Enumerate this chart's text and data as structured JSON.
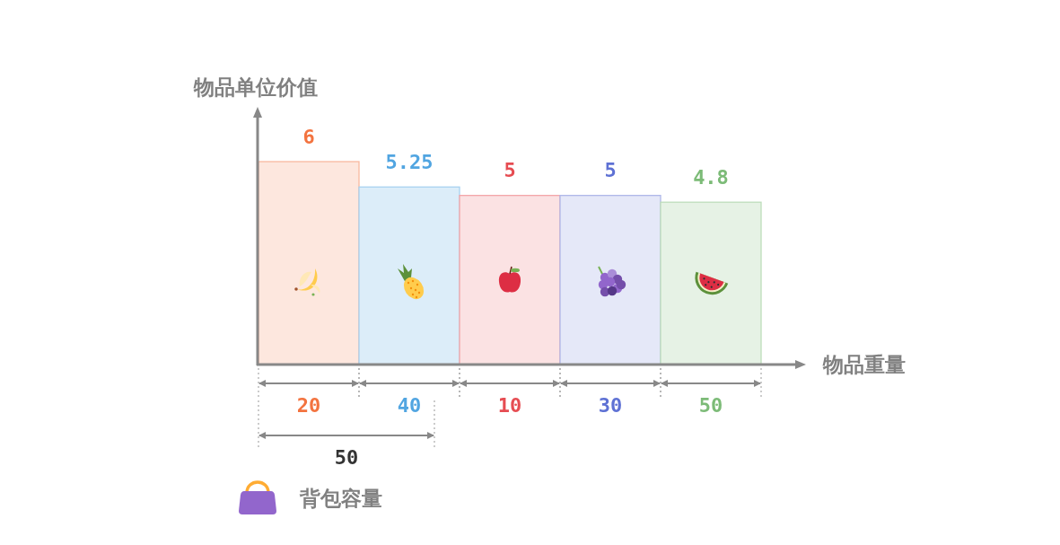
{
  "chart_data": {
    "type": "bar",
    "xlabel": "物品重量",
    "ylabel": "物品单位价值",
    "categories": [
      null,
      null,
      null,
      null,
      null
    ],
    "values": [
      6,
      5.25,
      5,
      5,
      4.8
    ],
    "colors": [
      "#fde7de",
      "#dcedf9",
      "#fbe2e3",
      "#e5e8f8",
      "#e6f2e5"
    ],
    "data_labels": true,
    "annotations": [
      "20",
      "40",
      "10",
      "30",
      "50",
      "50",
      "背包容量"
    ]
  }
}
